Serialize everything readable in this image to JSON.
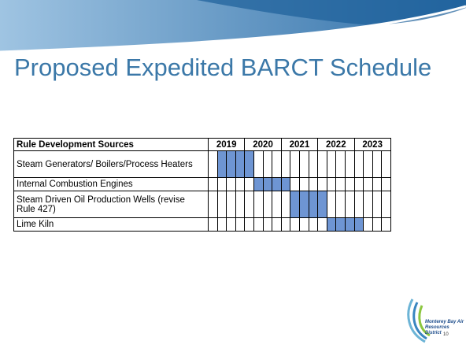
{
  "title": "Proposed Expedited BARCT Schedule",
  "table": {
    "header": {
      "label": "Rule Development Sources",
      "years": [
        "2019",
        "2020",
        "2021",
        "2022",
        "2023"
      ]
    },
    "rows": [
      {
        "label": "Steam Generators/ Boilers/Process Heaters",
        "shaded": [
          0,
          1,
          1,
          1,
          1,
          0,
          0,
          0,
          0,
          0,
          0,
          0,
          0,
          0,
          0,
          0,
          0,
          0,
          0,
          0
        ]
      },
      {
        "label": "Internal Combustion Engines",
        "shaded": [
          0,
          0,
          0,
          0,
          0,
          1,
          1,
          1,
          1,
          0,
          0,
          0,
          0,
          0,
          0,
          0,
          0,
          0,
          0,
          0
        ]
      },
      {
        "label": "Steam Driven Oil Production  Wells (revise Rule 427)",
        "shaded": [
          0,
          0,
          0,
          0,
          0,
          0,
          0,
          0,
          0,
          1,
          1,
          1,
          1,
          0,
          0,
          0,
          0,
          0,
          0,
          0
        ]
      },
      {
        "label": "Lime Kiln",
        "shaded": [
          0,
          0,
          0,
          0,
          0,
          0,
          0,
          0,
          0,
          0,
          0,
          0,
          0,
          1,
          1,
          1,
          1,
          0,
          0,
          0
        ]
      }
    ]
  },
  "footer": {
    "logo_text": "Monterey Bay Air Resources District",
    "page_number": "10"
  }
}
